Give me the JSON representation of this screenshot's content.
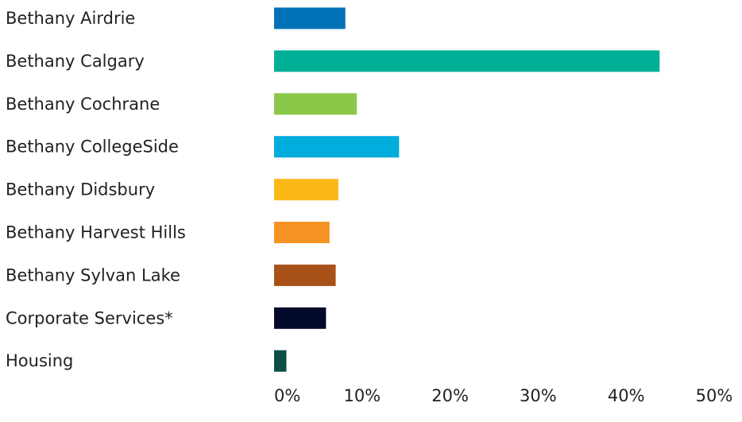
{
  "chart_data": {
    "type": "bar",
    "orientation": "horizontal",
    "categories": [
      "Bethany Airdrie",
      "Bethany Calgary",
      "Bethany Cochrane",
      "Bethany CollegeSide",
      "Bethany Didsbury",
      "Bethany Harvest Hills",
      "Bethany Sylvan Lake",
      "Corporate Services*",
      "Housing"
    ],
    "values": [
      8.1,
      43.8,
      9.4,
      14.2,
      7.3,
      6.3,
      7.0,
      5.9,
      1.4
    ],
    "colors": [
      "#0072b5",
      "#00b096",
      "#8bc84a",
      "#00addd",
      "#fcb817",
      "#f69325",
      "#a85119",
      "#030a2b",
      "#0b4f46"
    ],
    "xlim": [
      0,
      50
    ],
    "xticks": [
      0,
      10,
      20,
      30,
      40,
      50
    ],
    "xtick_labels": [
      "0%",
      "10%",
      "20%",
      "30%",
      "40%",
      "50%"
    ],
    "title": "",
    "xlabel": "",
    "ylabel": "",
    "grid": false,
    "legend": "none"
  }
}
